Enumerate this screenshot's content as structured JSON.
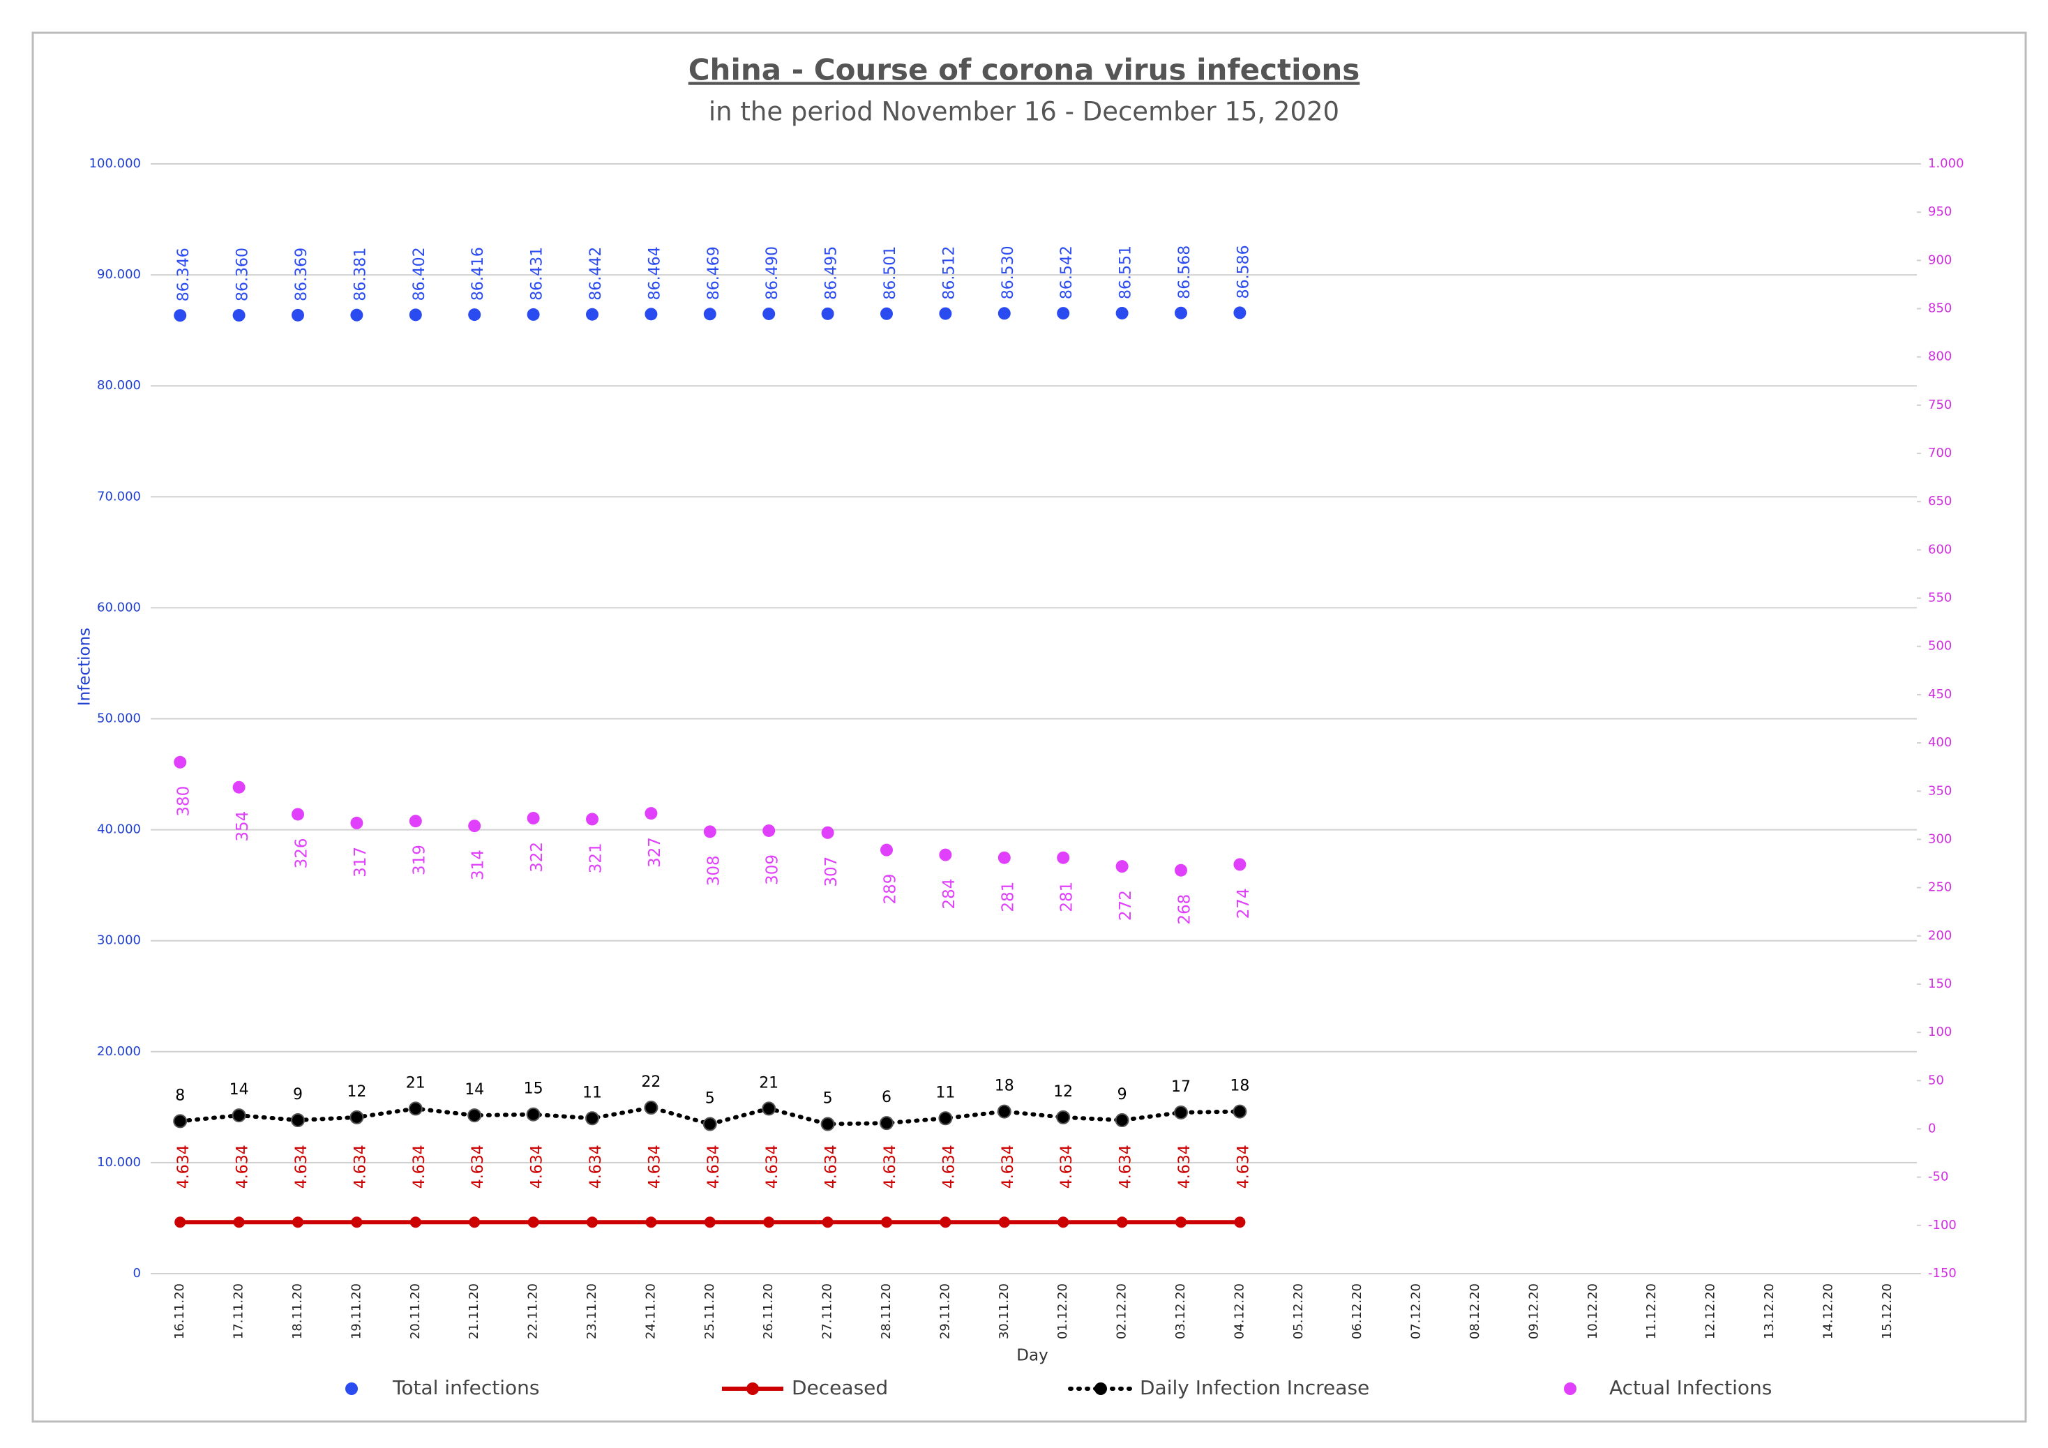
{
  "chart_data": {
    "type": "line",
    "title": "China - Course of corona virus infections",
    "subtitle": "in the period November 16 - December 15, 2020",
    "x_label": "Day",
    "y_label": "Infections",
    "categories": [
      "16.11.20",
      "17.11.20",
      "18.11.20",
      "19.11.20",
      "20.11.20",
      "21.11.20",
      "22.11.20",
      "23.11.20",
      "24.11.20",
      "25.11.20",
      "26.11.20",
      "27.11.20",
      "28.11.20",
      "29.11.20",
      "30.11.20",
      "01.12.20",
      "02.12.20",
      "03.12.20",
      "04.12.20",
      "05.12.20",
      "06.12.20",
      "07.12.20",
      "08.12.20",
      "09.12.20",
      "10.12.20",
      "11.12.20",
      "12.12.20",
      "13.12.20",
      "14.12.20",
      "15.12.20"
    ],
    "ylim": [
      0,
      100000
    ],
    "yticks": [
      0,
      {
        "value": 10000,
        "label": "10.000"
      },
      {
        "value": 20000,
        "label": "20.000"
      },
      {
        "value": 30000,
        "label": "30.000"
      },
      {
        "value": 40000,
        "label": "40.000"
      },
      {
        "value": 50000,
        "label": "50.000"
      },
      {
        "value": 60000,
        "label": "60.000"
      },
      {
        "value": 70000,
        "label": "70.000"
      },
      {
        "value": 80000,
        "label": "80.000"
      },
      {
        "value": 90000,
        "label": "90.000"
      },
      {
        "value": 100000,
        "label": "100.000"
      }
    ],
    "y2lim": [
      -150,
      1000
    ],
    "y2ticks": [
      -150,
      -100,
      -50,
      0,
      50,
      100,
      150,
      200,
      250,
      300,
      350,
      400,
      450,
      500,
      550,
      600,
      650,
      700,
      750,
      800,
      850,
      900,
      950,
      {
        "value": 1000,
        "label": "1.000"
      }
    ],
    "grid": true,
    "legend": "bottom",
    "series": [
      {
        "name": "Total infections",
        "color": "#2a4bf0",
        "style": "markers",
        "axis": "y",
        "values": [
          86346,
          86360,
          86369,
          86381,
          86402,
          86416,
          86431,
          86442,
          86464,
          86469,
          86490,
          86495,
          86501,
          86512,
          86530,
          86542,
          86551,
          86568,
          86586,
          null,
          null,
          null,
          null,
          null,
          null,
          null,
          null,
          null,
          null,
          null
        ],
        "value_labels": [
          "86.346",
          "86.360",
          "86.369",
          "86.381",
          "86.402",
          "86.416",
          "86.431",
          "86.442",
          "86.464",
          "86.469",
          "86.490",
          "86.495",
          "86.501",
          "86.512",
          "86.530",
          "86.542",
          "86.551",
          "86.568",
          "86.586",
          null,
          null,
          null,
          null,
          null,
          null,
          null,
          null,
          null,
          null,
          null
        ]
      },
      {
        "name": "Deceased",
        "color": "#cc0000",
        "style": "solid",
        "axis": "y",
        "values": [
          4634,
          4634,
          4634,
          4634,
          4634,
          4634,
          4634,
          4634,
          4634,
          4634,
          4634,
          4634,
          4634,
          4634,
          4634,
          4634,
          4634,
          4634,
          4634,
          null,
          null,
          null,
          null,
          null,
          null,
          null,
          null,
          null,
          null,
          null
        ],
        "value_labels": [
          "4.634",
          "4.634",
          "4.634",
          "4.634",
          "4.634",
          "4.634",
          "4.634",
          "4.634",
          "4.634",
          "4.634",
          "4.634",
          "4.634",
          "4.634",
          "4.634",
          "4.634",
          "4.634",
          "4.634",
          "4.634",
          "4.634",
          null,
          null,
          null,
          null,
          null,
          null,
          null,
          null,
          null,
          null,
          null
        ]
      },
      {
        "name": "Daily Infection Increase",
        "color": "#000000",
        "style": "dotted",
        "axis": "y2",
        "values": [
          8,
          14,
          9,
          12,
          21,
          14,
          15,
          11,
          22,
          5,
          21,
          5,
          6,
          11,
          18,
          12,
          9,
          17,
          18,
          null,
          null,
          null,
          null,
          null,
          null,
          null,
          null,
          null,
          null,
          null
        ]
      },
      {
        "name": "Actual Infections",
        "color": "#e040fb",
        "style": "markers",
        "axis": "y2",
        "values": [
          380,
          354,
          326,
          317,
          319,
          314,
          322,
          321,
          327,
          308,
          309,
          307,
          289,
          284,
          281,
          281,
          272,
          268,
          274,
          null,
          null,
          null,
          null,
          null,
          null,
          null,
          null,
          null,
          null,
          null
        ]
      }
    ]
  }
}
